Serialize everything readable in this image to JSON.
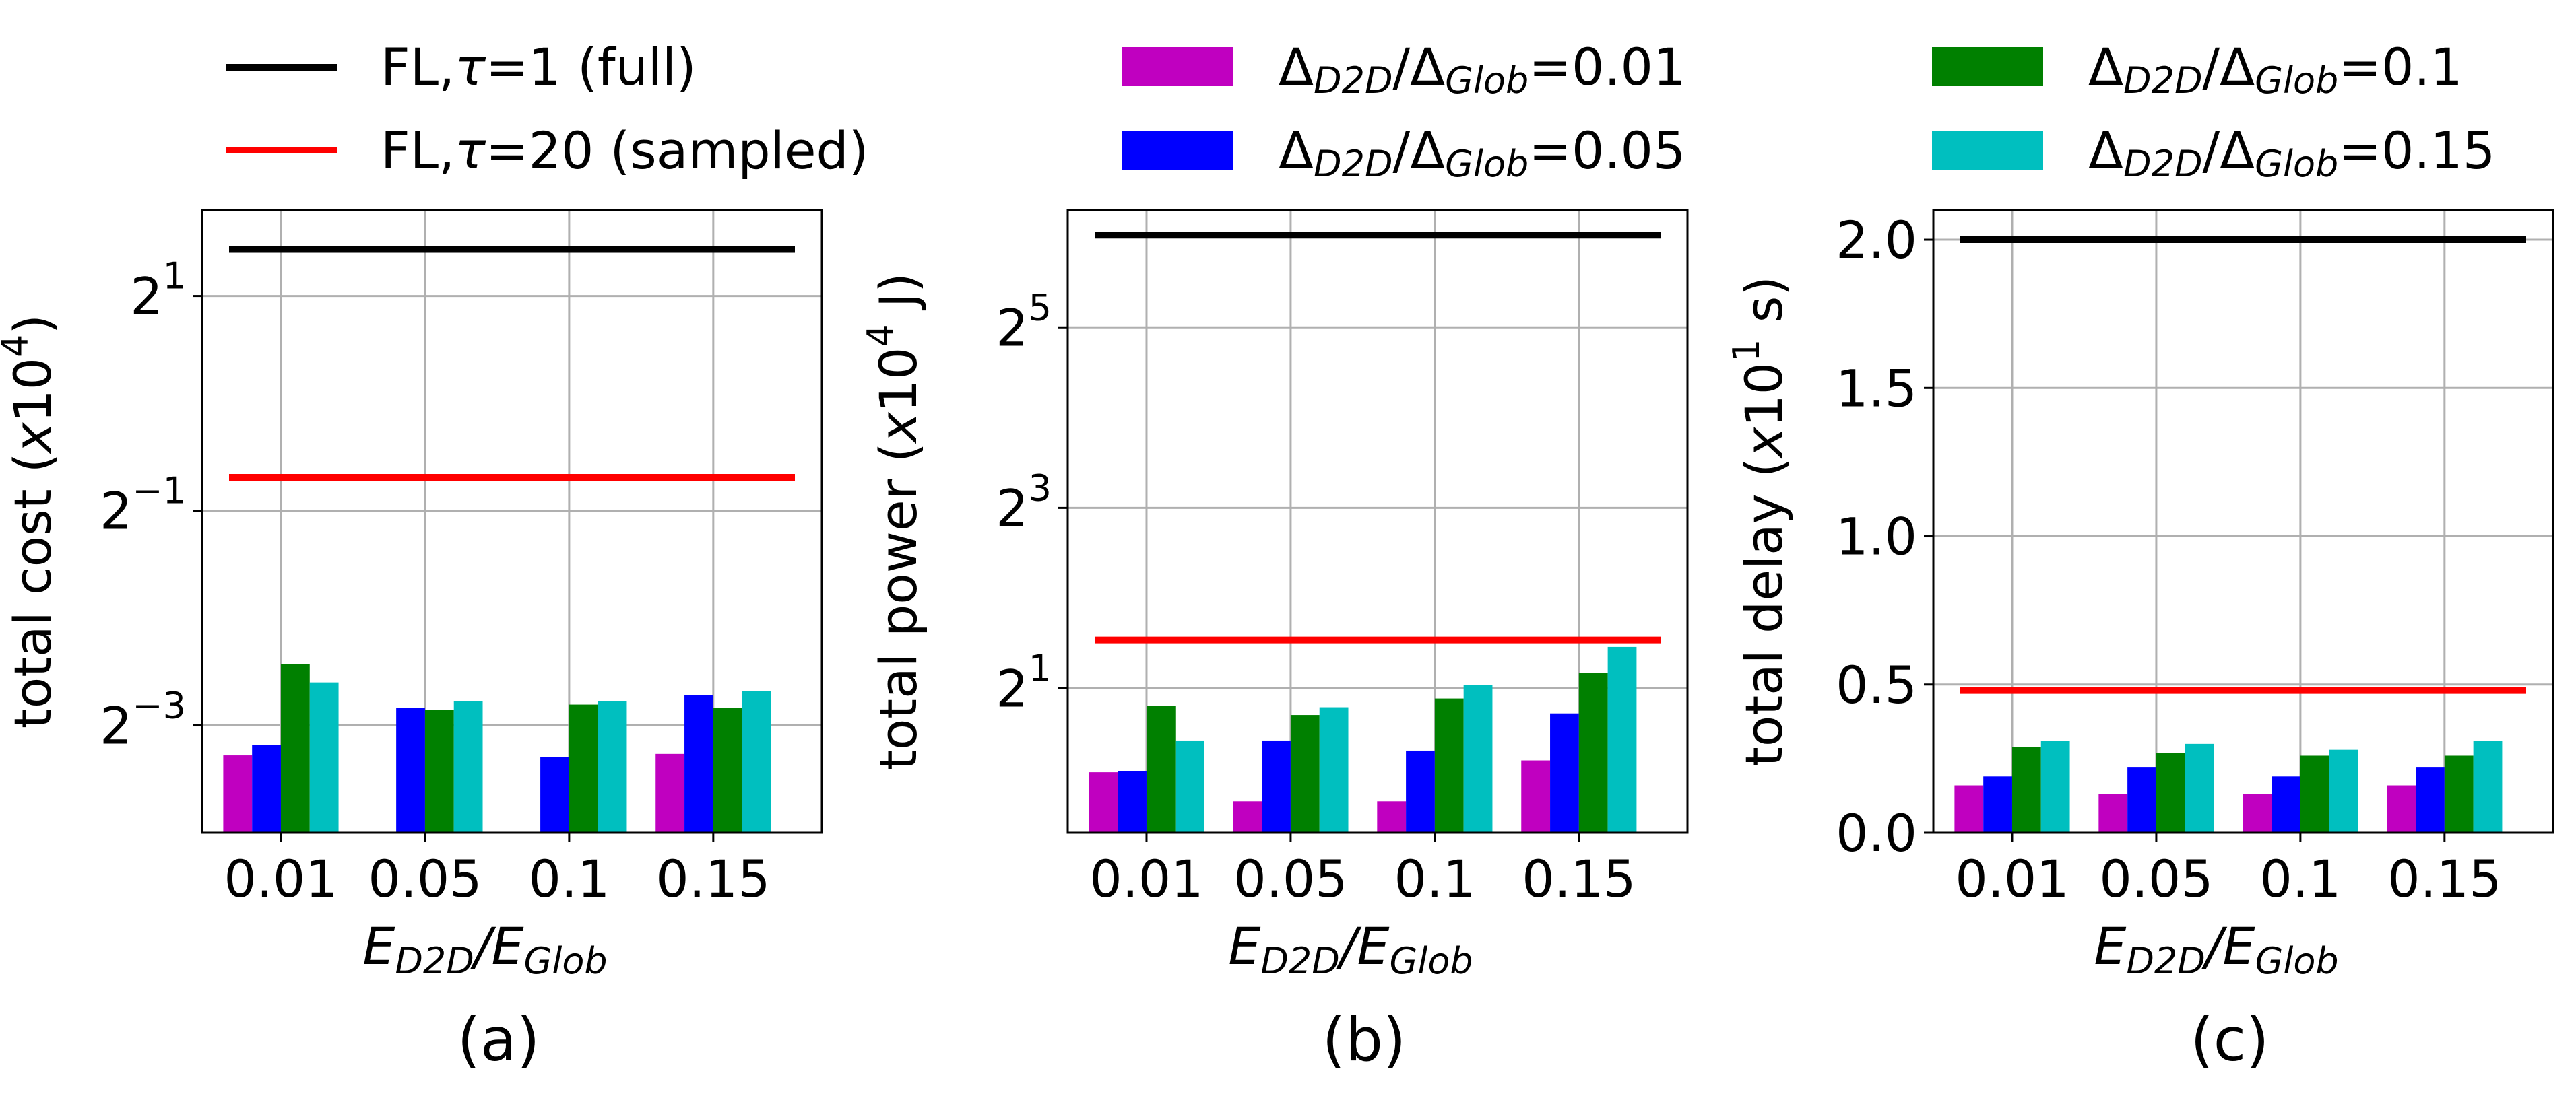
{
  "legend": {
    "lines": [
      {
        "label": "FL,",
        "tau": "τ",
        "rest": "=1 (full)",
        "color": "#000000"
      },
      {
        "label": "FL,",
        "tau": "τ",
        "rest": "=20 (sampled)",
        "color": "#ff0000"
      }
    ],
    "bars": [
      {
        "base": "Δ",
        "sub1": "D2D",
        "mid": "/Δ",
        "sub2": "Glob",
        "value": "=0.01",
        "color": "#c000c0"
      },
      {
        "base": "Δ",
        "sub1": "D2D",
        "mid": "/Δ",
        "sub2": "Glob",
        "value": "=0.05",
        "color": "#0000ff"
      },
      {
        "base": "Δ",
        "sub1": "D2D",
        "mid": "/Δ",
        "sub2": "Glob",
        "value": "=0.1",
        "color": "#008000"
      },
      {
        "base": "Δ",
        "sub1": "D2D",
        "mid": "/Δ",
        "sub2": "Glob",
        "value": "=0.15",
        "color": "#00bfbf"
      }
    ]
  },
  "chart_data": [
    {
      "type": "bar",
      "panel_label": "(a)",
      "title": "",
      "xlabel": {
        "e1": "E",
        "s1": "D2D",
        "mid": "/E",
        "s2": "Glob"
      },
      "ylabel": {
        "pre": "total cost (",
        "x": "x",
        "base": "10",
        "exp": "4",
        "post": ")"
      },
      "yscale": "log2",
      "ylim_log2": [
        -4.0,
        1.8
      ],
      "yticks": [
        {
          "base": "2",
          "exp": "1",
          "log2": 1
        },
        {
          "base": "2",
          "exp": "−1",
          "log2": -1
        },
        {
          "base": "2",
          "exp": "−3",
          "log2": -3
        }
      ],
      "categories": [
        "0.01",
        "0.05",
        "0.1",
        "0.15"
      ],
      "series": [
        {
          "name": "Δ_D2D/Δ_Glob=0.01",
          "values": [
            0.103,
            0.06,
            0.06,
            0.104
          ]
        },
        {
          "name": "Δ_D2D/Δ_Glob=0.05",
          "values": [
            0.11,
            0.14,
            0.102,
            0.152
          ]
        },
        {
          "name": "Δ_D2D/Δ_Glob=0.1",
          "values": [
            0.186,
            0.138,
            0.143,
            0.14
          ]
        },
        {
          "name": "Δ_D2D/Δ_Glob=0.15",
          "values": [
            0.165,
            0.146,
            0.146,
            0.156
          ]
        }
      ],
      "reference_lines": [
        {
          "name": "FL,τ=1 (full)",
          "value": 2.7
        },
        {
          "name": "FL,τ=20 (sampled)",
          "value": 0.62
        }
      ],
      "grid": true
    },
    {
      "type": "bar",
      "panel_label": "(b)",
      "title": "",
      "xlabel": {
        "e1": "E",
        "s1": "D2D",
        "mid": "/E",
        "s2": "Glob"
      },
      "ylabel": {
        "pre": "total power (",
        "x": "x",
        "base": "10",
        "exp": "4",
        "post": " J)"
      },
      "yscale": "log2",
      "ylim_log2": [
        -0.6,
        6.3
      ],
      "yticks": [
        {
          "base": "2",
          "exp": "5",
          "log2": 5
        },
        {
          "base": "2",
          "exp": "3",
          "log2": 3
        },
        {
          "base": "2",
          "exp": "1",
          "log2": 1
        }
      ],
      "categories": [
        "0.01",
        "0.05",
        "0.1",
        "0.15"
      ],
      "series": [
        {
          "name": "Δ_D2D/Δ_Glob=0.01",
          "values": [
            1.05,
            0.84,
            0.84,
            1.15
          ]
        },
        {
          "name": "Δ_D2D/Δ_Glob=0.05",
          "values": [
            1.06,
            1.34,
            1.24,
            1.65
          ]
        },
        {
          "name": "Δ_D2D/Δ_Glob=0.1",
          "values": [
            1.75,
            1.63,
            1.85,
            2.25
          ]
        },
        {
          "name": "Δ_D2D/Δ_Glob=0.15",
          "values": [
            1.34,
            1.73,
            2.05,
            2.75
          ]
        }
      ],
      "reference_lines": [
        {
          "name": "FL,τ=1 (full)",
          "value": 65.0
        },
        {
          "name": "FL,τ=20 (sampled)",
          "value": 2.9
        }
      ],
      "grid": true
    },
    {
      "type": "bar",
      "panel_label": "(c)",
      "title": "",
      "xlabel": {
        "e1": "E",
        "s1": "D2D",
        "mid": "/E",
        "s2": "Glob"
      },
      "ylabel": {
        "pre": "total delay (",
        "x": "x",
        "base": "10",
        "exp": "1",
        "post": " s)"
      },
      "yscale": "linear",
      "ylim": [
        0.0,
        2.1
      ],
      "yticks": [
        {
          "label": "0.0",
          "value": 0.0
        },
        {
          "label": "0.5",
          "value": 0.5
        },
        {
          "label": "1.0",
          "value": 1.0
        },
        {
          "label": "1.5",
          "value": 1.5
        },
        {
          "label": "2.0",
          "value": 2.0
        }
      ],
      "categories": [
        "0.01",
        "0.05",
        "0.1",
        "0.15"
      ],
      "series": [
        {
          "name": "Δ_D2D/Δ_Glob=0.01",
          "values": [
            0.16,
            0.13,
            0.13,
            0.16
          ]
        },
        {
          "name": "Δ_D2D/Δ_Glob=0.05",
          "values": [
            0.19,
            0.22,
            0.19,
            0.22
          ]
        },
        {
          "name": "Δ_D2D/Δ_Glob=0.1",
          "values": [
            0.29,
            0.27,
            0.26,
            0.26
          ]
        },
        {
          "name": "Δ_D2D/Δ_Glob=0.15",
          "values": [
            0.31,
            0.3,
            0.28,
            0.31
          ]
        }
      ],
      "reference_lines": [
        {
          "name": "FL,τ=1 (full)",
          "value": 2.0
        },
        {
          "name": "FL,τ=20 (sampled)",
          "value": 0.48
        }
      ],
      "grid": true
    }
  ]
}
